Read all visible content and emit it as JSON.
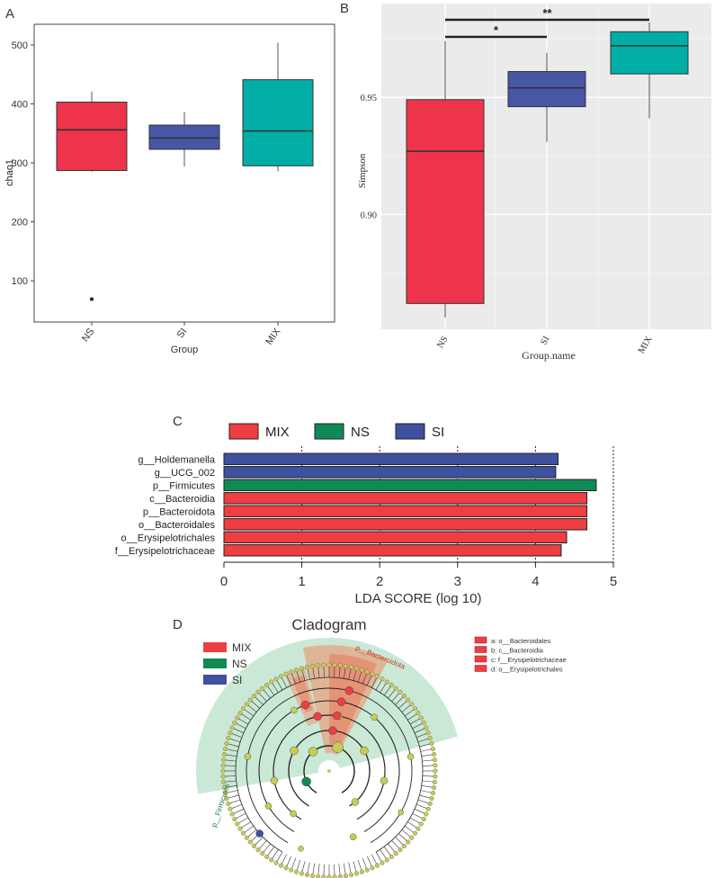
{
  "panel_labels": {
    "a": "A",
    "b": "B",
    "c": "C",
    "d": "D"
  },
  "chart_data": [
    {
      "id": "A",
      "type": "boxplot",
      "xlabel": "Group",
      "ylabel": "chao1",
      "ylim": [
        30,
        535
      ],
      "yticks": [
        100,
        200,
        300,
        400,
        500
      ],
      "categories": [
        "NS",
        "SI",
        "MIX"
      ],
      "boxes": [
        {
          "name": "NS",
          "color": "#EE344A",
          "whisker_low": 285,
          "q1": 287,
          "median": 356,
          "q3": 403,
          "whisker_high": 421,
          "outliers": [
            69
          ]
        },
        {
          "name": "SI",
          "color": "#4856A6",
          "whisker_low": 294,
          "q1": 323,
          "median": 342,
          "q3": 364,
          "whisker_high": 386,
          "outliers": []
        },
        {
          "name": "MIX",
          "color": "#00AEA6",
          "whisker_low": 286,
          "q1": 295,
          "median": 354,
          "q3": 441,
          "whisker_high": 504,
          "outliers": []
        }
      ]
    },
    {
      "id": "B",
      "type": "boxplot",
      "xlabel": "Group.name",
      "ylabel": "Simpson",
      "ylim": [
        0.851,
        0.99
      ],
      "yticks": [
        0.9,
        0.95
      ],
      "ytick_labels": [
        "0.90",
        "0.95"
      ],
      "categories": [
        "NS",
        "SI",
        "MIX"
      ],
      "boxes": [
        {
          "name": "NS",
          "color": "#EE344A",
          "whisker_low": 0.856,
          "q1": 0.862,
          "median": 0.927,
          "q3": 0.949,
          "whisker_high": 0.974,
          "outliers": []
        },
        {
          "name": "SI",
          "color": "#4856A6",
          "whisker_low": 0.931,
          "q1": 0.946,
          "median": 0.954,
          "q3": 0.961,
          "whisker_high": 0.969,
          "outliers": []
        },
        {
          "name": "MIX",
          "color": "#00AEA6",
          "whisker_low": 0.941,
          "q1": 0.96,
          "median": 0.972,
          "q3": 0.978,
          "whisker_high": 0.982,
          "outliers": []
        }
      ],
      "significance": [
        {
          "from": "NS",
          "to": "SI",
          "label": "*"
        },
        {
          "from": "NS",
          "to": "MIX",
          "label": "**"
        }
      ]
    },
    {
      "id": "C",
      "type": "bar",
      "orientation": "horizontal",
      "xlabel": "LDA SCORE (log 10)",
      "xlim": [
        0,
        5
      ],
      "xticks": [
        0,
        1,
        2,
        3,
        4,
        5
      ],
      "legend": [
        {
          "name": "MIX",
          "color": "#EE3D43"
        },
        {
          "name": "NS",
          "color": "#108A55"
        },
        {
          "name": "SI",
          "color": "#3F50A0"
        }
      ],
      "bars": [
        {
          "label": "g__Holdemanella",
          "value": 4.29,
          "group": "SI"
        },
        {
          "label": "g__UCG_002",
          "value": 4.26,
          "group": "SI"
        },
        {
          "label": "p__Firmicutes",
          "value": 4.78,
          "group": "NS"
        },
        {
          "label": "c__Bacteroidia",
          "value": 4.66,
          "group": "MIX"
        },
        {
          "label": "p__Bacteroidota",
          "value": 4.66,
          "group": "MIX"
        },
        {
          "label": "o__Bacteroidales",
          "value": 4.66,
          "group": "MIX"
        },
        {
          "label": "o__Erysipelotrichales",
          "value": 4.4,
          "group": "MIX"
        },
        {
          "label": "f__Erysipelotrichaceae",
          "value": 4.33,
          "group": "MIX"
        }
      ]
    }
  ],
  "cladogram": {
    "title": "Cladogram",
    "legend": [
      {
        "name": "MIX",
        "color": "#EE3D43"
      },
      {
        "name": "NS",
        "color": "#108A55"
      },
      {
        "name": "SI",
        "color": "#3F50A0"
      }
    ],
    "key": [
      {
        "letter": "a",
        "text": "a: o__Bacteroidales"
      },
      {
        "letter": "b",
        "text": "b: c__Bacteroidia"
      },
      {
        "letter": "c",
        "text": "c: f__Erysipelotrichaceae"
      },
      {
        "letter": "d",
        "text": "d: o__Erysipelotrichales"
      }
    ],
    "sector_labels": {
      "bacteroidota": "p__Bacteroidota",
      "firmicutes": "p__Firmicutes"
    }
  }
}
